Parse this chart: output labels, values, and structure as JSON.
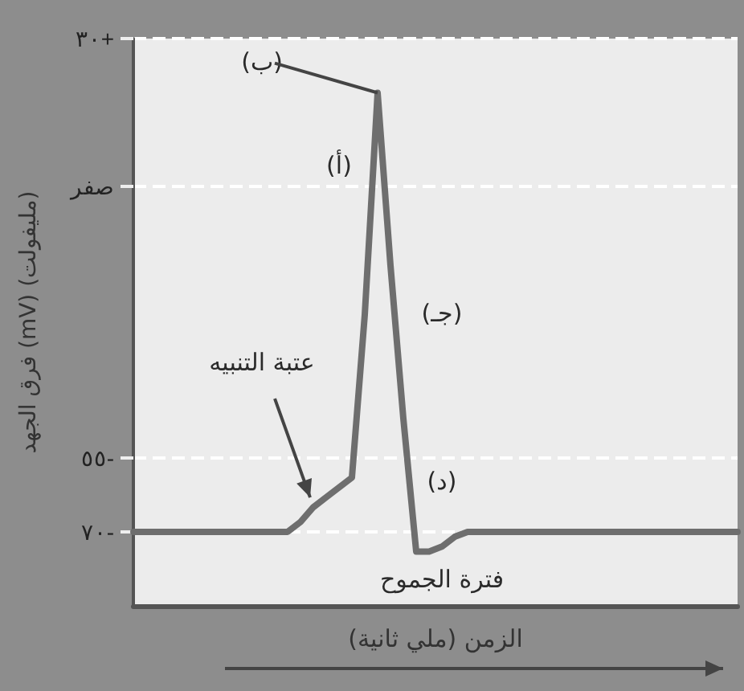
{
  "chart_data": {
    "type": "line",
    "xlabel": "الزمن (ملي ثانية)",
    "ylabel": "فرق الجهد (mV) (مليفولت)",
    "categories": [
      null,
      null,
      null,
      null,
      null,
      null,
      null,
      null,
      null,
      null,
      null,
      null,
      null,
      null,
      null,
      null,
      null,
      null,
      null,
      null,
      null,
      null,
      null,
      null,
      null,
      null,
      null,
      null,
      null,
      null,
      null,
      null,
      null,
      null,
      null,
      null,
      null,
      null,
      null,
      null,
      null,
      null,
      null,
      null,
      null,
      null,
      null,
      null
    ],
    "series": [
      {
        "color": "#6e6e6e",
        "values": [
          -70,
          -70,
          -70,
          -70,
          -70,
          -70,
          -70,
          -70,
          -70,
          -70,
          -70,
          -70,
          -70,
          -68,
          -65,
          -63,
          -61,
          -59,
          -26,
          19,
          -16,
          -47,
          -74,
          -74,
          -73,
          -71,
          -70,
          -70,
          -70,
          -70,
          -70,
          -70,
          -70,
          -70,
          -70,
          -70,
          -70,
          -70,
          -70,
          -70,
          -70,
          -70,
          -70,
          -70,
          -70,
          -70,
          -70,
          -70
        ]
      }
    ],
    "ylim": [
      -85,
      30
    ],
    "yticks": [
      {
        "value": 30,
        "label": "٣٠+"
      },
      {
        "value": 0,
        "label": "صفر"
      },
      {
        "value": -55,
        "label": "٥٥-"
      },
      {
        "value": -70,
        "label": "٧٠-"
      }
    ],
    "annotations": [
      "(ب)",
      "(أ)",
      "(جـ)",
      "(د)",
      "عتبة التنبيه",
      "فترة الجموح"
    ],
    "grid": "y",
    "marker": "none",
    "line_style": "solid"
  }
}
